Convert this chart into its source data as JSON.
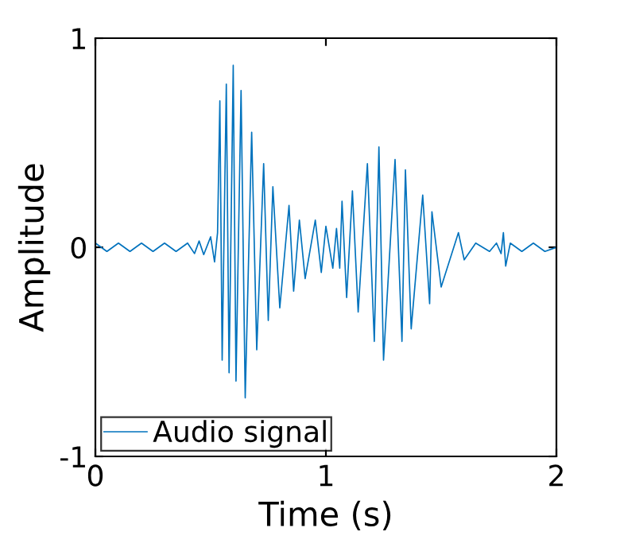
{
  "chart_data": {
    "type": "line",
    "xlabel": "Time (s)",
    "ylabel": "Amplitude",
    "xlim": [
      0,
      2
    ],
    "ylim": [
      -1,
      1
    ],
    "xticks": [
      0,
      1,
      2
    ],
    "yticks": [
      -1,
      0,
      1
    ],
    "grid": false,
    "legend": "bottom left",
    "marker": "none",
    "line_style": "solid",
    "series": [
      {
        "name": "Audio signal",
        "color": "#0072bd",
        "x": [
          0,
          0.05,
          0.1,
          0.15,
          0.2,
          0.25,
          0.3,
          0.35,
          0.4,
          0.43,
          0.45,
          0.47,
          0.5,
          0.517,
          0.53,
          0.54,
          0.55,
          0.568,
          0.58,
          0.598,
          0.61,
          0.632,
          0.65,
          0.678,
          0.7,
          0.73,
          0.75,
          0.77,
          0.8,
          0.84,
          0.86,
          0.885,
          0.91,
          0.954,
          0.98,
          1.0,
          1.03,
          1.046,
          1.06,
          1.07,
          1.09,
          1.115,
          1.14,
          1.18,
          1.21,
          1.23,
          1.25,
          1.3,
          1.33,
          1.345,
          1.37,
          1.42,
          1.45,
          1.46,
          1.5,
          1.575,
          1.6,
          1.65,
          1.71,
          1.74,
          1.76,
          1.77,
          1.78,
          1.8,
          1.85,
          1.9,
          1.95,
          2.0
        ],
        "values": [
          0.02,
          -0.02,
          0.02,
          -0.02,
          0.02,
          -0.02,
          0.02,
          -0.02,
          0.02,
          -0.03,
          0.03,
          -0.035,
          0.05,
          -0.07,
          0.07,
          0.7,
          -0.54,
          0.78,
          -0.6,
          0.87,
          -0.64,
          0.75,
          -0.72,
          0.55,
          -0.49,
          0.4,
          -0.35,
          0.29,
          -0.29,
          0.2,
          -0.21,
          0.13,
          -0.15,
          0.13,
          -0.12,
          0.1,
          -0.1,
          0.09,
          -0.1,
          0.22,
          -0.24,
          0.27,
          -0.31,
          0.4,
          -0.45,
          0.48,
          -0.54,
          0.42,
          -0.45,
          0.37,
          -0.39,
          0.25,
          -0.27,
          0.17,
          -0.19,
          0.07,
          -0.06,
          0.02,
          -0.02,
          0.02,
          -0.03,
          0.07,
          -0.09,
          0.02,
          -0.02,
          0.02,
          -0.02,
          0.0
        ]
      }
    ]
  }
}
